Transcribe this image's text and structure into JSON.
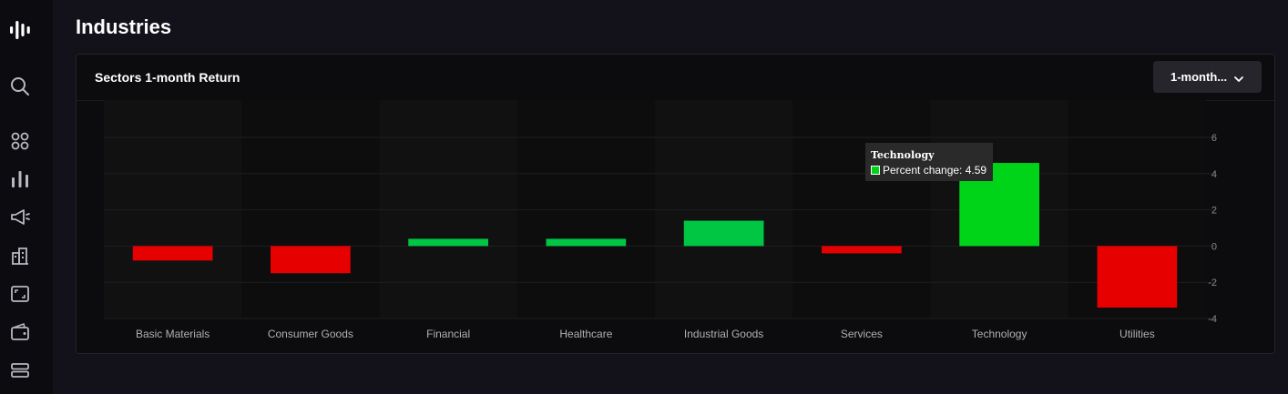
{
  "page": {
    "title": "Industries"
  },
  "sidebar": {
    "icons": [
      "logo-icon",
      "search-icon",
      "apps-grid-icon",
      "bar-chart-icon",
      "megaphone-icon",
      "buildings-icon",
      "screen-frame-icon",
      "wallet-icon",
      "stack-icon"
    ]
  },
  "card": {
    "title": "Sectors 1-month Return",
    "period_dropdown": {
      "label": "1-month...",
      "icon": "chevron-down-icon"
    }
  },
  "colors": {
    "positive": "#00c644",
    "positive_highlight": "#00d419",
    "negative": "#e60000",
    "band_light": "#111111",
    "band_dark": "#0d0d0d",
    "grid": "#1e1e22",
    "tick_label": "#8a8a8a",
    "category_label": "#b0b0b0"
  },
  "tooltip": {
    "title": "Technology",
    "label": "Percent change: 4.59"
  },
  "chart_data": {
    "type": "bar",
    "categories": [
      "Basic Materials",
      "Consumer Goods",
      "Financial",
      "Healthcare",
      "Industrial Goods",
      "Services",
      "Technology",
      "Utilities"
    ],
    "values": [
      -0.8,
      -1.5,
      0.4,
      0.4,
      1.4,
      -0.4,
      4.59,
      -3.4
    ],
    "highlighted_index": 6,
    "yticks": [
      6,
      4,
      2,
      0,
      -2,
      -4
    ],
    "ylim": [
      -4,
      6
    ],
    "grid": true,
    "y_axis_position": "right",
    "legend": "none"
  }
}
